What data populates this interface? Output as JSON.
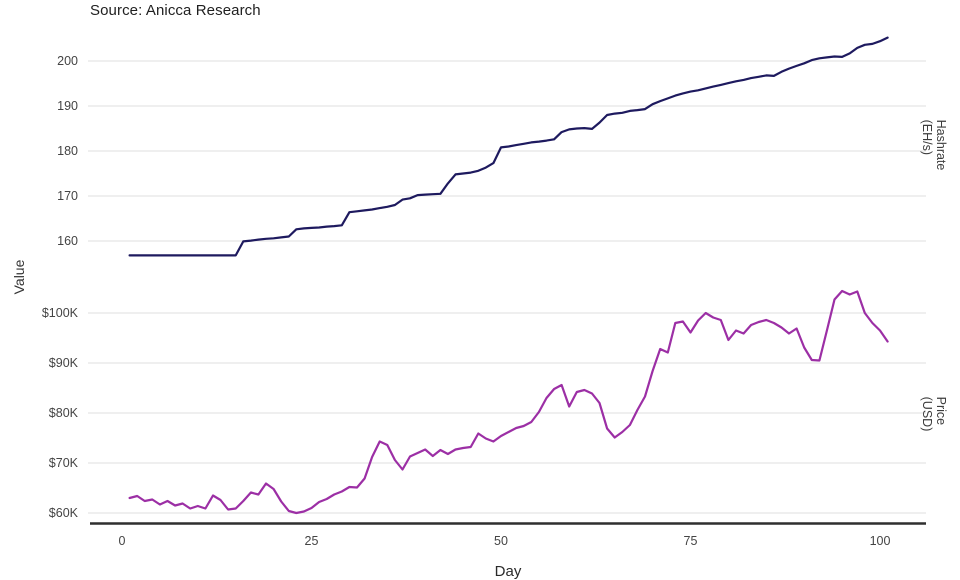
{
  "source_label": "Source: Anicca Research",
  "axes": {
    "x_label": "Day",
    "x_ticks": [
      0,
      25,
      50,
      75,
      100
    ],
    "left_label": "Value",
    "right_label_top": "Hashrate (EH/s)",
    "right_label_bottom": "Price (USD)",
    "hashrate_tick_labels": [
      "160",
      "170",
      "180",
      "190",
      "200"
    ],
    "price_tick_labels": [
      "$60K",
      "$70K",
      "$80K",
      "$90K",
      "$100K"
    ]
  },
  "colors": {
    "hashrate_line": "#1e1a5f",
    "price_line": "#9c2fa5",
    "grid": "#eaeaea",
    "axis_line": "#2f2f2f",
    "tick_text": "#444444"
  },
  "chart_data": [
    {
      "type": "line",
      "name": "Hashrate",
      "ylabel": "Hashrate (EH/s)",
      "xlabel": "Day",
      "color": "#1e1a5f",
      "legend_position": "none",
      "grid": true,
      "x_first_day": 1,
      "x_step": 1,
      "xlim": [
        0,
        101
      ],
      "ylim": [
        155,
        206
      ],
      "yticks": [
        160,
        170,
        180,
        190,
        200
      ],
      "values": [
        156.8,
        156.8,
        156.8,
        156.8,
        156.8,
        156.8,
        156.8,
        156.8,
        156.8,
        156.8,
        156.8,
        156.8,
        156.8,
        156.8,
        156.8,
        159.9,
        160.1,
        160.3,
        160.5,
        160.6,
        160.8,
        161.0,
        162.6,
        162.8,
        162.9,
        163.0,
        163.2,
        163.3,
        163.5,
        166.4,
        166.6,
        166.8,
        167.0,
        167.3,
        167.6,
        168.0,
        169.2,
        169.5,
        170.2,
        170.3,
        170.4,
        170.5,
        172.8,
        174.8,
        175.0,
        175.2,
        175.6,
        176.3,
        177.3,
        180.8,
        181.0,
        181.3,
        181.6,
        181.9,
        182.1,
        182.3,
        182.6,
        184.2,
        184.8,
        185.0,
        185.1,
        184.9,
        186.3,
        188.0,
        188.3,
        188.5,
        188.9,
        189.1,
        189.3,
        190.4,
        191.1,
        191.7,
        192.3,
        192.8,
        193.2,
        193.5,
        193.9,
        194.3,
        194.7,
        195.1,
        195.5,
        195.8,
        196.2,
        196.5,
        196.8,
        196.7,
        197.6,
        198.3,
        198.9,
        199.5,
        200.2,
        200.6,
        200.8,
        201.0,
        200.9,
        201.7,
        202.9,
        203.6,
        203.8,
        204.4,
        205.2
      ]
    },
    {
      "type": "line",
      "name": "Price",
      "ylabel": "Price (USD)",
      "xlabel": "Day",
      "unit": "USD thousands",
      "color": "#9c2fa5",
      "legend_position": "none",
      "grid": true,
      "x_first_day": 1,
      "x_step": 1,
      "xlim": [
        0,
        101
      ],
      "ylim": [
        59,
        106
      ],
      "yticks": [
        60,
        70,
        80,
        90,
        100
      ],
      "values": [
        63.0,
        63.4,
        62.4,
        62.7,
        61.7,
        62.4,
        61.5,
        61.9,
        60.9,
        61.4,
        60.9,
        63.5,
        62.6,
        60.7,
        60.9,
        62.4,
        64.1,
        63.7,
        65.9,
        64.8,
        62.3,
        60.4,
        60.0,
        60.3,
        61.0,
        62.2,
        62.8,
        63.7,
        64.3,
        65.2,
        65.1,
        66.9,
        71.2,
        74.3,
        73.6,
        70.6,
        68.7,
        71.3,
        72.0,
        72.7,
        71.4,
        72.6,
        71.8,
        72.7,
        73.0,
        73.2,
        75.9,
        74.9,
        74.3,
        75.4,
        76.2,
        77.0,
        77.4,
        78.2,
        80.2,
        83.0,
        84.8,
        85.6,
        81.3,
        84.2,
        84.6,
        83.9,
        82.0,
        76.9,
        75.1,
        76.2,
        77.6,
        80.6,
        83.3,
        88.4,
        92.8,
        92.1,
        98.0,
        98.3,
        96.1,
        98.5,
        100.0,
        99.1,
        98.6,
        94.6,
        96.5,
        95.9,
        97.6,
        98.2,
        98.6,
        98.0,
        97.1,
        95.9,
        96.9,
        93.1,
        90.6,
        90.5,
        96.5,
        102.7,
        104.4,
        103.7,
        104.3,
        100.0,
        98.0,
        96.5,
        94.3
      ]
    }
  ]
}
